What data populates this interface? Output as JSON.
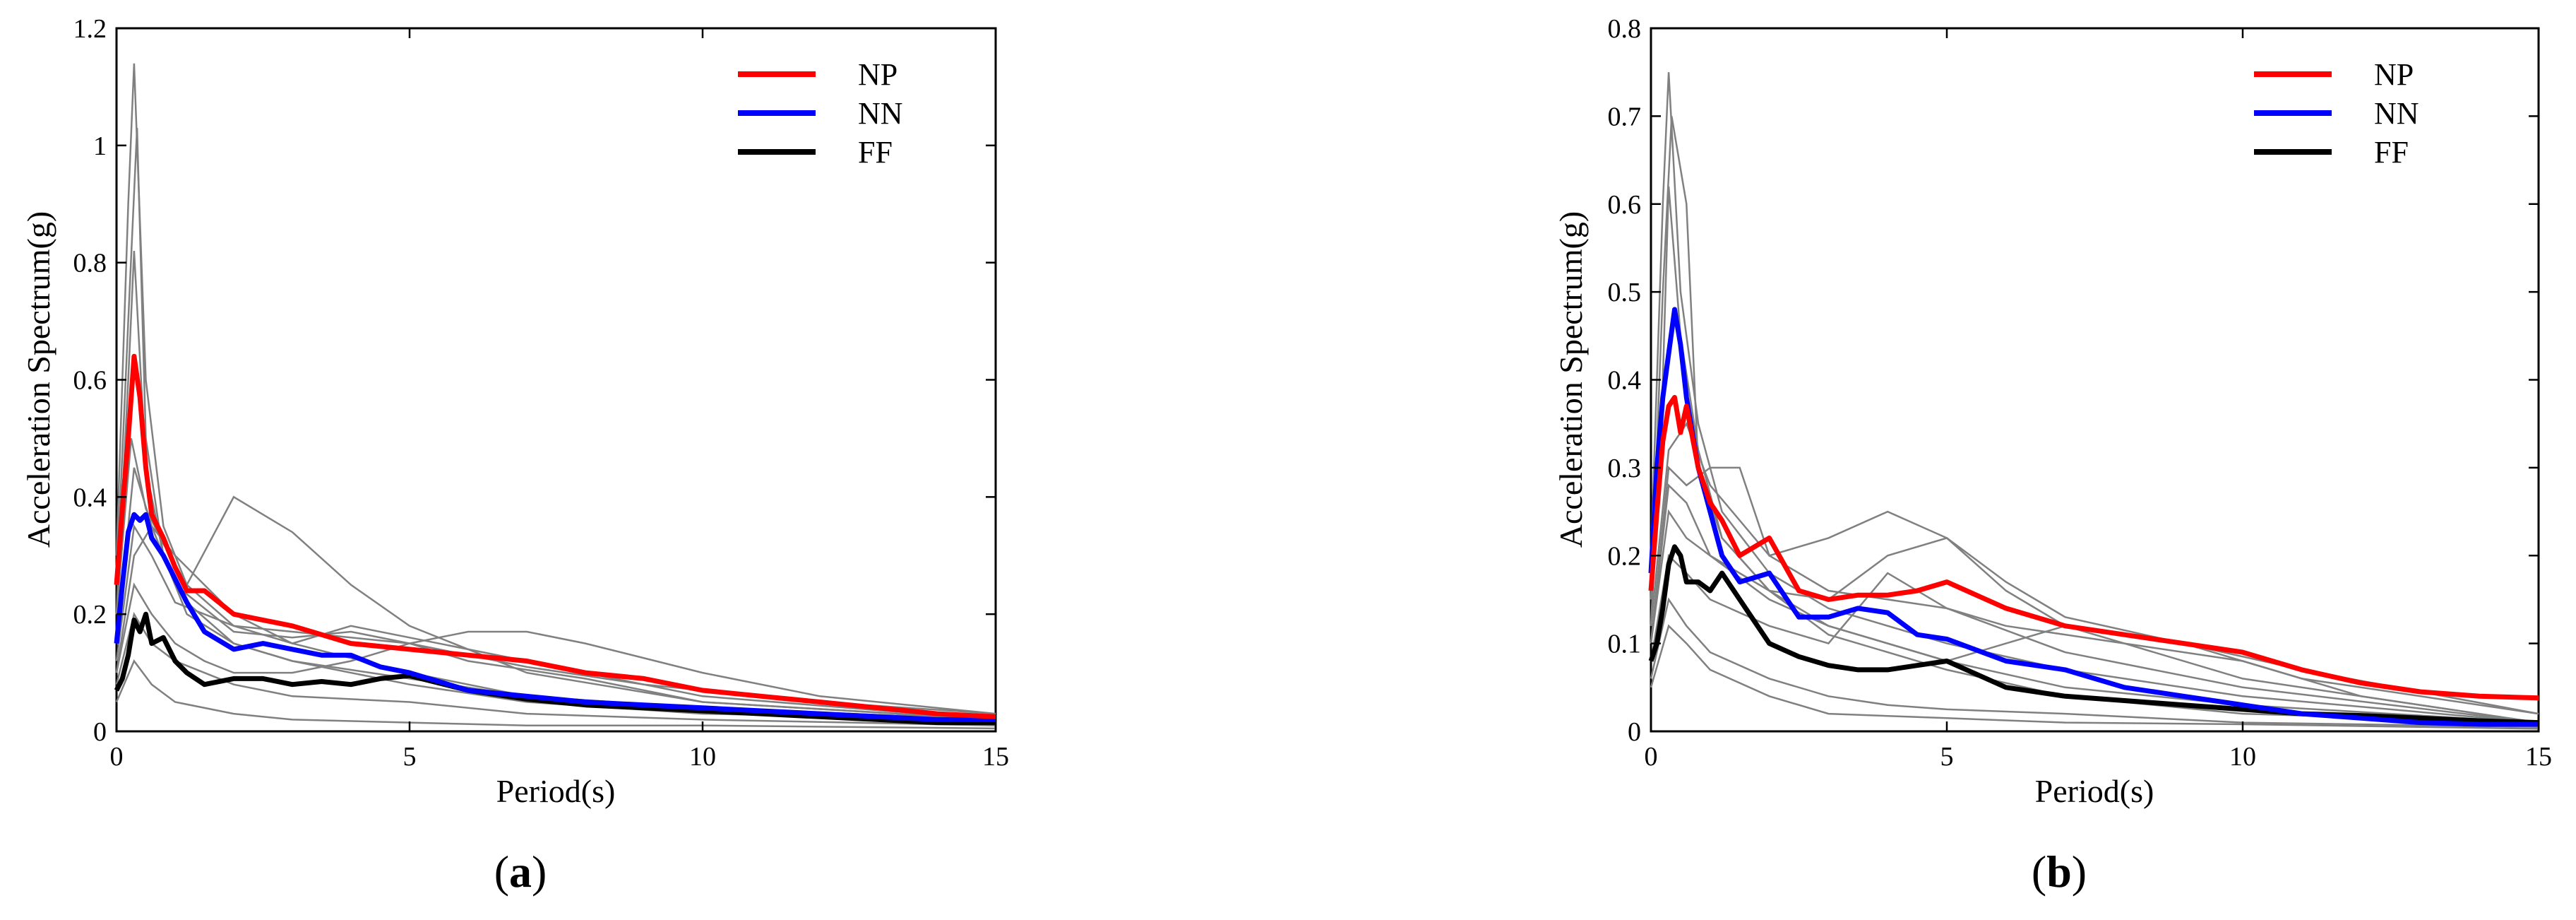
{
  "chart_data": [
    {
      "type": "line",
      "panel_label": "(a)",
      "panel_label_parts": {
        "open": "(",
        "letter": "a",
        "close": ")"
      },
      "xlabel": "Period(s)",
      "ylabel": "Acceleration Spectrum(g)",
      "xlim": [
        0,
        15
      ],
      "ylim": [
        0,
        1.2
      ],
      "xticks": [
        0,
        5,
        10,
        15
      ],
      "xtick_labels": [
        "0",
        "5",
        "10",
        "15"
      ],
      "yticks": [
        0,
        0.2,
        0.4,
        0.6,
        0.8,
        1.0,
        1.2
      ],
      "ytick_labels": [
        "0",
        "0.2",
        "0.4",
        "0.6",
        "0.8",
        "1",
        "1.2"
      ],
      "grid": false,
      "legend_position": "top-right",
      "colors": {
        "NP": "#ff0000",
        "NN": "#0000ff",
        "FF": "#000000",
        "records": "#808080"
      },
      "series": [
        {
          "name": "NP",
          "x": [
            0,
            0.1,
            0.2,
            0.3,
            0.4,
            0.5,
            0.6,
            0.8,
            1.0,
            1.2,
            1.5,
            2,
            3,
            4,
            5,
            6,
            7,
            8,
            9,
            10,
            11,
            12,
            13,
            14,
            15
          ],
          "y": [
            0.25,
            0.38,
            0.5,
            0.64,
            0.57,
            0.45,
            0.37,
            0.33,
            0.28,
            0.24,
            0.24,
            0.2,
            0.18,
            0.15,
            0.14,
            0.13,
            0.12,
            0.1,
            0.09,
            0.07,
            0.06,
            0.05,
            0.04,
            0.03,
            0.025
          ]
        },
        {
          "name": "NN",
          "x": [
            0,
            0.1,
            0.2,
            0.3,
            0.4,
            0.5,
            0.6,
            0.8,
            1.0,
            1.2,
            1.5,
            2,
            2.5,
            3,
            3.5,
            4,
            4.5,
            5,
            6,
            7,
            8,
            9,
            10,
            11,
            12,
            13,
            14,
            15
          ],
          "y": [
            0.15,
            0.25,
            0.34,
            0.37,
            0.36,
            0.37,
            0.33,
            0.3,
            0.26,
            0.22,
            0.17,
            0.14,
            0.15,
            0.14,
            0.13,
            0.13,
            0.11,
            0.1,
            0.07,
            0.06,
            0.05,
            0.045,
            0.04,
            0.035,
            0.03,
            0.025,
            0.02,
            0.02
          ]
        },
        {
          "name": "FF",
          "x": [
            0,
            0.1,
            0.2,
            0.3,
            0.4,
            0.5,
            0.6,
            0.8,
            1.0,
            1.2,
            1.5,
            2,
            2.5,
            3,
            3.5,
            4,
            4.5,
            5,
            6,
            7,
            8,
            9,
            10,
            11,
            12,
            13,
            14,
            15
          ],
          "y": [
            0.07,
            0.09,
            0.13,
            0.19,
            0.17,
            0.2,
            0.15,
            0.16,
            0.12,
            0.1,
            0.08,
            0.09,
            0.09,
            0.08,
            0.085,
            0.08,
            0.09,
            0.095,
            0.07,
            0.055,
            0.045,
            0.04,
            0.035,
            0.03,
            0.025,
            0.02,
            0.015,
            0.015
          ]
        }
      ],
      "records": [
        {
          "x": [
            0,
            0.2,
            0.3,
            0.5,
            0.8,
            1.2,
            2,
            3,
            5,
            7,
            10,
            15
          ],
          "y": [
            0.3,
            0.9,
            1.14,
            0.6,
            0.35,
            0.25,
            0.18,
            0.15,
            0.1,
            0.06,
            0.04,
            0.02
          ]
        },
        {
          "x": [
            0,
            0.2,
            0.35,
            0.5,
            0.8,
            1.2,
            2,
            3,
            5,
            7,
            10,
            15
          ],
          "y": [
            0.25,
            0.7,
            1.03,
            0.5,
            0.3,
            0.22,
            0.15,
            0.12,
            0.08,
            0.05,
            0.03,
            0.02
          ]
        },
        {
          "x": [
            0,
            0.2,
            0.3,
            0.5,
            0.8,
            1.2,
            2,
            3,
            5,
            7,
            10,
            15
          ],
          "y": [
            0.2,
            0.6,
            0.82,
            0.45,
            0.3,
            0.2,
            0.15,
            0.12,
            0.09,
            0.06,
            0.04,
            0.02
          ]
        },
        {
          "x": [
            0,
            0.25,
            0.5,
            0.8,
            1.2,
            2,
            3,
            4,
            5,
            7,
            10,
            15
          ],
          "y": [
            0.2,
            0.5,
            0.38,
            0.32,
            0.25,
            0.4,
            0.34,
            0.25,
            0.18,
            0.1,
            0.05,
            0.02
          ]
        },
        {
          "x": [
            0,
            0.3,
            0.6,
            1,
            1.5,
            2,
            3,
            4,
            5,
            6,
            7,
            8,
            10,
            12,
            15
          ],
          "y": [
            0.1,
            0.25,
            0.2,
            0.15,
            0.12,
            0.1,
            0.1,
            0.12,
            0.15,
            0.17,
            0.17,
            0.15,
            0.1,
            0.06,
            0.03
          ]
        },
        {
          "x": [
            0,
            0.3,
            0.6,
            1,
            2,
            3,
            4,
            5,
            6,
            7,
            9,
            12,
            15
          ],
          "y": [
            0.12,
            0.35,
            0.3,
            0.22,
            0.18,
            0.17,
            0.16,
            0.15,
            0.13,
            0.11,
            0.08,
            0.05,
            0.03
          ]
        },
        {
          "x": [
            0,
            0.3,
            0.6,
            1,
            2,
            3,
            5,
            7,
            10,
            15
          ],
          "y": [
            0.08,
            0.2,
            0.15,
            0.12,
            0.08,
            0.06,
            0.05,
            0.03,
            0.02,
            0.01
          ]
        },
        {
          "x": [
            0,
            0.3,
            0.6,
            1,
            2,
            3,
            5,
            7,
            10,
            15
          ],
          "y": [
            0.05,
            0.12,
            0.08,
            0.05,
            0.03,
            0.02,
            0.015,
            0.01,
            0.01,
            0.005
          ]
        },
        {
          "x": [
            0,
            0.3,
            0.6,
            1,
            2,
            3,
            4,
            5,
            7,
            10,
            15
          ],
          "y": [
            0.15,
            0.45,
            0.35,
            0.3,
            0.2,
            0.15,
            0.18,
            0.16,
            0.12,
            0.06,
            0.02
          ]
        },
        {
          "x": [
            0,
            0.3,
            0.6,
            1,
            2,
            3,
            4,
            5,
            6,
            8,
            10,
            15
          ],
          "y": [
            0.1,
            0.3,
            0.35,
            0.25,
            0.17,
            0.16,
            0.17,
            0.15,
            0.12,
            0.09,
            0.05,
            0.02
          ]
        }
      ]
    },
    {
      "type": "line",
      "panel_label": "(b)",
      "panel_label_parts": {
        "open": "(",
        "letter": "b",
        "close": ")"
      },
      "xlabel": "Period(s)",
      "ylabel": "Acceleration Spectrum(g)",
      "xlim": [
        0,
        15
      ],
      "ylim": [
        0,
        0.8
      ],
      "xticks": [
        0,
        5,
        10,
        15
      ],
      "xtick_labels": [
        "0",
        "5",
        "10",
        "15"
      ],
      "yticks": [
        0,
        0.1,
        0.2,
        0.3,
        0.4,
        0.5,
        0.6,
        0.7,
        0.8
      ],
      "ytick_labels": [
        "0",
        "0.1",
        "0.2",
        "0.3",
        "0.4",
        "0.5",
        "0.6",
        "0.7",
        "0.8"
      ],
      "grid": false,
      "legend_position": "top-right",
      "colors": {
        "NP": "#ff0000",
        "NN": "#0000ff",
        "FF": "#000000",
        "records": "#808080"
      },
      "series": [
        {
          "name": "NP",
          "x": [
            0,
            0.1,
            0.2,
            0.3,
            0.4,
            0.5,
            0.6,
            0.8,
            1.0,
            1.2,
            1.5,
            2,
            2.5,
            3,
            3.5,
            4,
            4.5,
            5,
            6,
            7,
            8,
            9,
            10,
            11,
            12,
            13,
            14,
            15
          ],
          "y": [
            0.16,
            0.25,
            0.33,
            0.37,
            0.38,
            0.34,
            0.37,
            0.3,
            0.26,
            0.24,
            0.2,
            0.22,
            0.16,
            0.15,
            0.155,
            0.155,
            0.16,
            0.17,
            0.14,
            0.12,
            0.11,
            0.1,
            0.09,
            0.07,
            0.055,
            0.045,
            0.04,
            0.038
          ]
        },
        {
          "name": "NN",
          "x": [
            0,
            0.1,
            0.2,
            0.3,
            0.4,
            0.5,
            0.6,
            0.8,
            1.0,
            1.2,
            1.5,
            2,
            2.5,
            3,
            3.5,
            4,
            4.5,
            5,
            6,
            7,
            8,
            9,
            10,
            11,
            12,
            13,
            14,
            15
          ],
          "y": [
            0.18,
            0.3,
            0.38,
            0.43,
            0.48,
            0.44,
            0.38,
            0.3,
            0.25,
            0.2,
            0.17,
            0.18,
            0.13,
            0.13,
            0.14,
            0.135,
            0.11,
            0.105,
            0.08,
            0.07,
            0.05,
            0.04,
            0.03,
            0.02,
            0.015,
            0.01,
            0.008,
            0.008
          ]
        },
        {
          "name": "FF",
          "x": [
            0,
            0.1,
            0.2,
            0.3,
            0.4,
            0.5,
            0.6,
            0.8,
            1.0,
            1.2,
            1.5,
            2,
            2.5,
            3,
            3.5,
            4,
            4.5,
            5,
            6,
            7,
            8,
            9,
            10,
            11,
            12,
            13,
            14,
            15
          ],
          "y": [
            0.08,
            0.1,
            0.14,
            0.19,
            0.21,
            0.2,
            0.17,
            0.17,
            0.16,
            0.18,
            0.15,
            0.1,
            0.085,
            0.075,
            0.07,
            0.07,
            0.075,
            0.08,
            0.05,
            0.04,
            0.035,
            0.03,
            0.025,
            0.02,
            0.018,
            0.015,
            0.012,
            0.01
          ]
        }
      ],
      "records": [
        {
          "x": [
            0,
            0.2,
            0.3,
            0.5,
            0.8,
            1.2,
            2,
            3,
            5,
            7,
            10,
            15
          ],
          "y": [
            0.2,
            0.6,
            0.75,
            0.5,
            0.35,
            0.25,
            0.18,
            0.14,
            0.1,
            0.07,
            0.04,
            0.01
          ]
        },
        {
          "x": [
            0,
            0.2,
            0.35,
            0.6,
            0.8,
            1.2,
            2,
            3,
            5,
            7,
            10,
            15
          ],
          "y": [
            0.15,
            0.5,
            0.7,
            0.6,
            0.3,
            0.22,
            0.16,
            0.12,
            0.08,
            0.05,
            0.03,
            0.01
          ]
        },
        {
          "x": [
            0,
            0.2,
            0.3,
            0.5,
            0.8,
            1.2,
            2,
            3,
            5,
            7,
            10,
            15
          ],
          "y": [
            0.12,
            0.4,
            0.62,
            0.45,
            0.32,
            0.22,
            0.16,
            0.11,
            0.07,
            0.04,
            0.02,
            0.01
          ]
        },
        {
          "x": [
            0,
            0.3,
            0.6,
            1,
            1.5,
            2,
            3,
            4,
            5,
            6,
            7,
            9,
            11,
            15
          ],
          "y": [
            0.1,
            0.3,
            0.28,
            0.3,
            0.3,
            0.2,
            0.22,
            0.25,
            0.22,
            0.16,
            0.12,
            0.1,
            0.07,
            0.02
          ]
        },
        {
          "x": [
            0,
            0.3,
            0.6,
            1,
            2,
            3,
            4,
            5,
            6,
            7,
            9,
            11,
            15
          ],
          "y": [
            0.1,
            0.25,
            0.22,
            0.2,
            0.16,
            0.15,
            0.2,
            0.22,
            0.17,
            0.13,
            0.1,
            0.06,
            0.02
          ]
        },
        {
          "x": [
            0,
            0.3,
            0.6,
            1,
            2,
            3,
            4,
            5,
            7,
            10,
            15
          ],
          "y": [
            0.06,
            0.15,
            0.12,
            0.09,
            0.06,
            0.04,
            0.03,
            0.025,
            0.02,
            0.01,
            0.005
          ]
        },
        {
          "x": [
            0,
            0.3,
            0.6,
            1,
            2,
            3,
            5,
            7,
            10,
            15
          ],
          "y": [
            0.05,
            0.12,
            0.1,
            0.07,
            0.04,
            0.02,
            0.015,
            0.01,
            0.008,
            0.003
          ]
        },
        {
          "x": [
            0,
            0.3,
            0.6,
            1,
            1.5,
            2,
            3,
            4,
            5,
            6,
            8,
            10,
            12,
            15
          ],
          "y": [
            0.12,
            0.32,
            0.35,
            0.28,
            0.24,
            0.2,
            0.16,
            0.15,
            0.14,
            0.12,
            0.1,
            0.08,
            0.04,
            0.01
          ]
        },
        {
          "x": [
            0,
            0.3,
            0.6,
            1,
            2,
            3,
            4,
            5,
            6,
            7,
            8,
            10,
            15
          ],
          "y": [
            0.1,
            0.28,
            0.26,
            0.2,
            0.15,
            0.12,
            0.1,
            0.08,
            0.1,
            0.12,
            0.1,
            0.06,
            0.01
          ]
        },
        {
          "x": [
            0,
            0.3,
            0.6,
            1,
            2,
            3,
            4,
            5,
            7,
            10,
            15
          ],
          "y": [
            0.08,
            0.2,
            0.18,
            0.15,
            0.12,
            0.1,
            0.18,
            0.14,
            0.09,
            0.05,
            0.01
          ]
        }
      ]
    }
  ]
}
